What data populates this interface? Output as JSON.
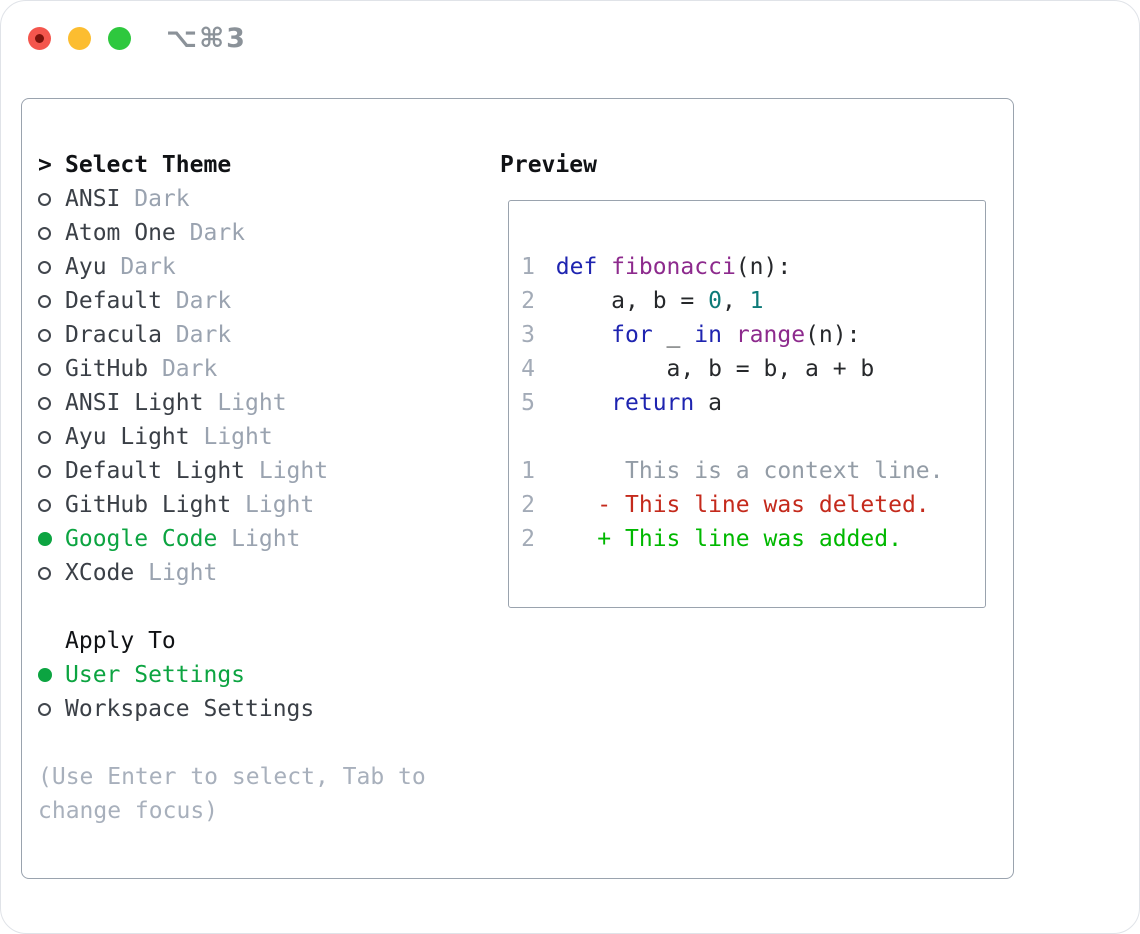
{
  "window": {
    "shortcut_label": "⌥⌘3",
    "traffic_lights": [
      "close",
      "minimize",
      "zoom"
    ]
  },
  "theme_selector": {
    "title": "Select Theme",
    "title_marker": ">",
    "items": [
      {
        "name": "ANSI",
        "variant": "Dark",
        "selected": false
      },
      {
        "name": "Atom One",
        "variant": "Dark",
        "selected": false
      },
      {
        "name": "Ayu",
        "variant": "Dark",
        "selected": false
      },
      {
        "name": "Default",
        "variant": "Dark",
        "selected": false
      },
      {
        "name": "Dracula",
        "variant": "Dark",
        "selected": false
      },
      {
        "name": "GitHub",
        "variant": "Dark",
        "selected": false
      },
      {
        "name": "ANSI Light",
        "variant": "Light",
        "selected": false
      },
      {
        "name": "Ayu Light",
        "variant": "Light",
        "selected": false
      },
      {
        "name": "Default Light",
        "variant": "Light",
        "selected": false
      },
      {
        "name": "GitHub Light",
        "variant": "Light",
        "selected": false
      },
      {
        "name": "Google Code",
        "variant": "Light",
        "selected": true
      },
      {
        "name": "XCode",
        "variant": "Light",
        "selected": false
      }
    ]
  },
  "apply_to": {
    "title": "Apply To",
    "options": [
      {
        "label": "User Settings",
        "selected": true
      },
      {
        "label": "Workspace Settings",
        "selected": false
      }
    ]
  },
  "hint": "(Use Enter to select, Tab to change focus)",
  "preview": {
    "title": "Preview",
    "code_lines": [
      {
        "num": "1",
        "tokens": [
          {
            "text": "def",
            "type": "keyword"
          },
          {
            "text": " ",
            "type": "plain"
          },
          {
            "text": "fibonacci",
            "type": "function"
          },
          {
            "text": "(n):",
            "type": "plain"
          }
        ]
      },
      {
        "num": "2",
        "tokens": [
          {
            "text": "    a, b = ",
            "type": "plain"
          },
          {
            "text": "0",
            "type": "number"
          },
          {
            "text": ", ",
            "type": "plain"
          },
          {
            "text": "1",
            "type": "number"
          }
        ]
      },
      {
        "num": "3",
        "tokens": [
          {
            "text": "    ",
            "type": "plain"
          },
          {
            "text": "for",
            "type": "keyword"
          },
          {
            "text": " _ ",
            "type": "plain"
          },
          {
            "text": "in",
            "type": "keyword"
          },
          {
            "text": " ",
            "type": "plain"
          },
          {
            "text": "range",
            "type": "function"
          },
          {
            "text": "(n):",
            "type": "plain"
          }
        ]
      },
      {
        "num": "4",
        "tokens": [
          {
            "text": "        a, b = b, a + b",
            "type": "plain"
          }
        ]
      },
      {
        "num": "5",
        "tokens": [
          {
            "text": "    ",
            "type": "plain"
          },
          {
            "text": "return",
            "type": "keyword"
          },
          {
            "text": " a",
            "type": "plain"
          }
        ]
      }
    ],
    "diff_lines": [
      {
        "num": "1",
        "text": "     This is a context line.",
        "type": "context"
      },
      {
        "num": "2",
        "text": "   - This line was deleted.",
        "type": "deleted"
      },
      {
        "num": "2",
        "text": "   + This line was added.",
        "type": "added"
      }
    ]
  },
  "colors": {
    "accent_green": "#0ca441",
    "diff_added": "#00b800",
    "diff_deleted": "#c42a1c",
    "keyword_blue": "#1e24b0",
    "function_purple": "#8d2a8d",
    "number_teal": "#0d7a78",
    "muted_gray": "#9aa3b0",
    "panel_border": "#9aa3ae",
    "traffic_red": "#f4564d",
    "traffic_yellow": "#fcbd30",
    "traffic_green": "#2ec83e"
  }
}
